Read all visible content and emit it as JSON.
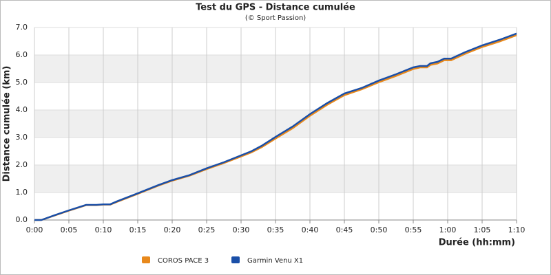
{
  "chart_data": {
    "type": "line",
    "title": "Test du GPS - Distance cumulée",
    "subtitle": "(© Sport Passion)",
    "x_label": "Durée (hh:mm)",
    "y_label": "Distance cumulée (km)",
    "x": [
      0,
      1,
      3,
      5,
      7.5,
      9,
      10,
      11,
      12,
      15,
      17.5,
      18,
      20,
      22.5,
      25,
      27.5,
      30,
      31.5,
      33,
      35,
      37.5,
      40,
      42.5,
      45,
      47.5,
      50,
      52.5,
      55,
      56,
      57,
      57.5,
      58.5,
      59.5,
      60.5,
      62.5,
      65,
      67.5,
      70
    ],
    "series": [
      {
        "name": "COROS PACE 3",
        "color": "#e8891c",
        "values": [
          0,
          0,
          0.17,
          0.34,
          0.54,
          0.54,
          0.56,
          0.56,
          0.66,
          0.95,
          1.2,
          1.25,
          1.43,
          1.61,
          1.85,
          2.07,
          2.31,
          2.46,
          2.65,
          2.96,
          3.34,
          3.79,
          4.19,
          4.54,
          4.75,
          5.01,
          5.24,
          5.49,
          5.55,
          5.55,
          5.64,
          5.69,
          5.81,
          5.81,
          6.04,
          6.29,
          6.49,
          6.72
        ]
      },
      {
        "name": "Garmin Venu X1",
        "color": "#1a4fa8",
        "values": [
          0,
          0,
          0.18,
          0.35,
          0.55,
          0.55,
          0.57,
          0.57,
          0.68,
          0.97,
          1.22,
          1.27,
          1.45,
          1.63,
          1.88,
          2.1,
          2.35,
          2.5,
          2.7,
          3.02,
          3.4,
          3.85,
          4.25,
          4.6,
          4.8,
          5.07,
          5.3,
          5.55,
          5.6,
          5.6,
          5.7,
          5.75,
          5.87,
          5.87,
          6.1,
          6.35,
          6.55,
          6.78
        ]
      }
    ],
    "xlim": [
      0,
      70
    ],
    "xticks": [
      {
        "value": 0,
        "label": "0:00"
      },
      {
        "value": 5,
        "label": "0:05"
      },
      {
        "value": 10,
        "label": "0:10"
      },
      {
        "value": 15,
        "label": "0:15"
      },
      {
        "value": 20,
        "label": "0:20"
      },
      {
        "value": 25,
        "label": "0:25"
      },
      {
        "value": 30,
        "label": "0:30"
      },
      {
        "value": 35,
        "label": "0:35"
      },
      {
        "value": 40,
        "label": "0:40"
      },
      {
        "value": 45,
        "label": "0:45"
      },
      {
        "value": 50,
        "label": "0:50"
      },
      {
        "value": 55,
        "label": "0:55"
      },
      {
        "value": 60,
        "label": "1:00"
      },
      {
        "value": 65,
        "label": "1:05"
      },
      {
        "value": 70,
        "label": "1:10"
      }
    ],
    "ylim": [
      0,
      7
    ],
    "yticks": [
      {
        "value": 0,
        "label": "0.0"
      },
      {
        "value": 1,
        "label": "1.0"
      },
      {
        "value": 2,
        "label": "2.0"
      },
      {
        "value": 3,
        "label": "3.0"
      },
      {
        "value": 4,
        "label": "4.0"
      },
      {
        "value": 5,
        "label": "5.0"
      },
      {
        "value": 6,
        "label": "6.0"
      },
      {
        "value": 7,
        "label": "7.0"
      }
    ],
    "grid": true,
    "alternate_bands": true,
    "legend": "bottom"
  }
}
